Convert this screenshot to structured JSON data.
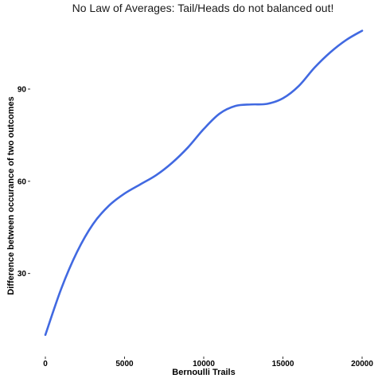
{
  "chart_data": {
    "type": "line",
    "title": "No Law of Averages: Tail/Heads do not balanced out!",
    "xlabel": "Bernoulli Trails",
    "ylabel": "Difference between occurance of two outcomes",
    "xlim": [
      0,
      20000
    ],
    "ylim": [
      4,
      112
    ],
    "x_ticks": [
      "0",
      "5000",
      "10000",
      "15000",
      "20000"
    ],
    "y_ticks": [
      "30",
      "60",
      "90"
    ],
    "grid": false,
    "series": [
      {
        "color": "#4169e1",
        "points": [
          [
            0,
            10
          ],
          [
            1000,
            25
          ],
          [
            2000,
            37
          ],
          [
            3000,
            46
          ],
          [
            4000,
            52
          ],
          [
            5000,
            56
          ],
          [
            6000,
            59
          ],
          [
            7000,
            62
          ],
          [
            8000,
            66
          ],
          [
            9000,
            71
          ],
          [
            10000,
            77
          ],
          [
            11000,
            82
          ],
          [
            12000,
            84.5
          ],
          [
            13000,
            85
          ],
          [
            14000,
            85.2
          ],
          [
            15000,
            87
          ],
          [
            16000,
            91
          ],
          [
            17000,
            97
          ],
          [
            18000,
            102
          ],
          [
            19000,
            106
          ],
          [
            20000,
            109
          ]
        ]
      }
    ]
  }
}
